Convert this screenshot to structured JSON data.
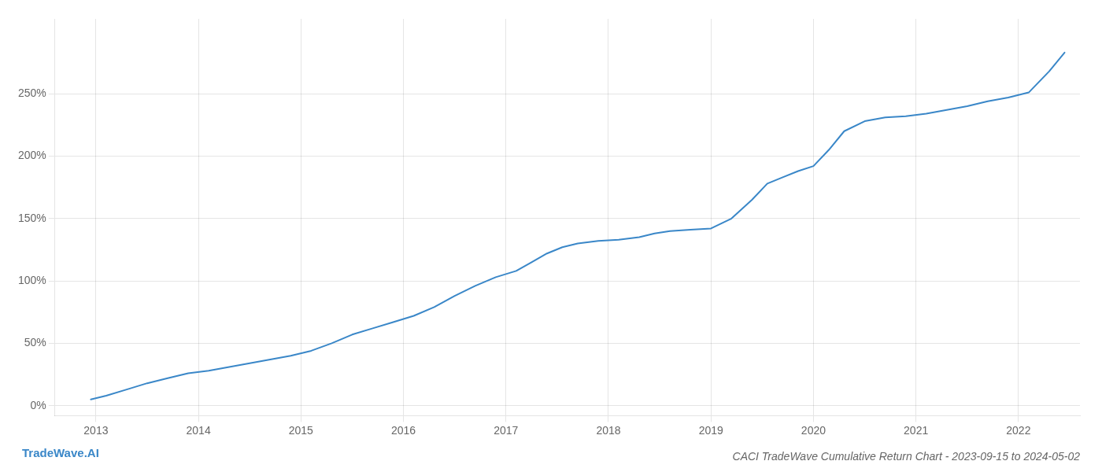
{
  "chart_data": {
    "type": "line",
    "title": "CACI TradeWave Cumulative Return Chart - 2023-09-15 to 2024-05-02",
    "annotations": [
      "TradeWave.AI"
    ],
    "x": [
      2012.95,
      2013.1,
      2013.3,
      2013.5,
      2013.7,
      2013.9,
      2014.1,
      2014.3,
      2014.5,
      2014.7,
      2014.9,
      2015.1,
      2015.3,
      2015.5,
      2015.7,
      2015.9,
      2016.1,
      2016.3,
      2016.5,
      2016.7,
      2016.9,
      2017.1,
      2017.25,
      2017.4,
      2017.55,
      2017.7,
      2017.9,
      2018.1,
      2018.3,
      2018.45,
      2018.6,
      2018.8,
      2019.0,
      2019.2,
      2019.4,
      2019.55,
      2019.7,
      2019.85,
      2020.0,
      2020.15,
      2020.3,
      2020.5,
      2020.7,
      2020.9,
      2021.1,
      2021.3,
      2021.5,
      2021.7,
      2021.9,
      2022.1,
      2022.3,
      2022.45
    ],
    "values": [
      5,
      8,
      13,
      18,
      22,
      26,
      28,
      31,
      34,
      37,
      40,
      44,
      50,
      57,
      62,
      67,
      72,
      79,
      88,
      96,
      103,
      108,
      115,
      122,
      127,
      130,
      132,
      133,
      135,
      138,
      140,
      141,
      142,
      150,
      165,
      178,
      183,
      188,
      192,
      205,
      220,
      228,
      231,
      232,
      234,
      237,
      240,
      244,
      247,
      251,
      268,
      283
    ],
    "color": "#3a87c8",
    "xlim": [
      2012.6,
      2022.6
    ],
    "xticks": [
      2013,
      2014,
      2015,
      2016,
      2017,
      2018,
      2019,
      2020,
      2021,
      2022
    ],
    "ylim": [
      -8,
      310
    ],
    "yticks": [
      {
        "value": 0,
        "label": "0%"
      },
      {
        "value": 50,
        "label": "50%"
      },
      {
        "value": 100,
        "label": "100%"
      },
      {
        "value": 150,
        "label": "150%"
      },
      {
        "value": 200,
        "label": "200%"
      },
      {
        "value": 250,
        "label": "250%"
      }
    ],
    "grid": true
  }
}
